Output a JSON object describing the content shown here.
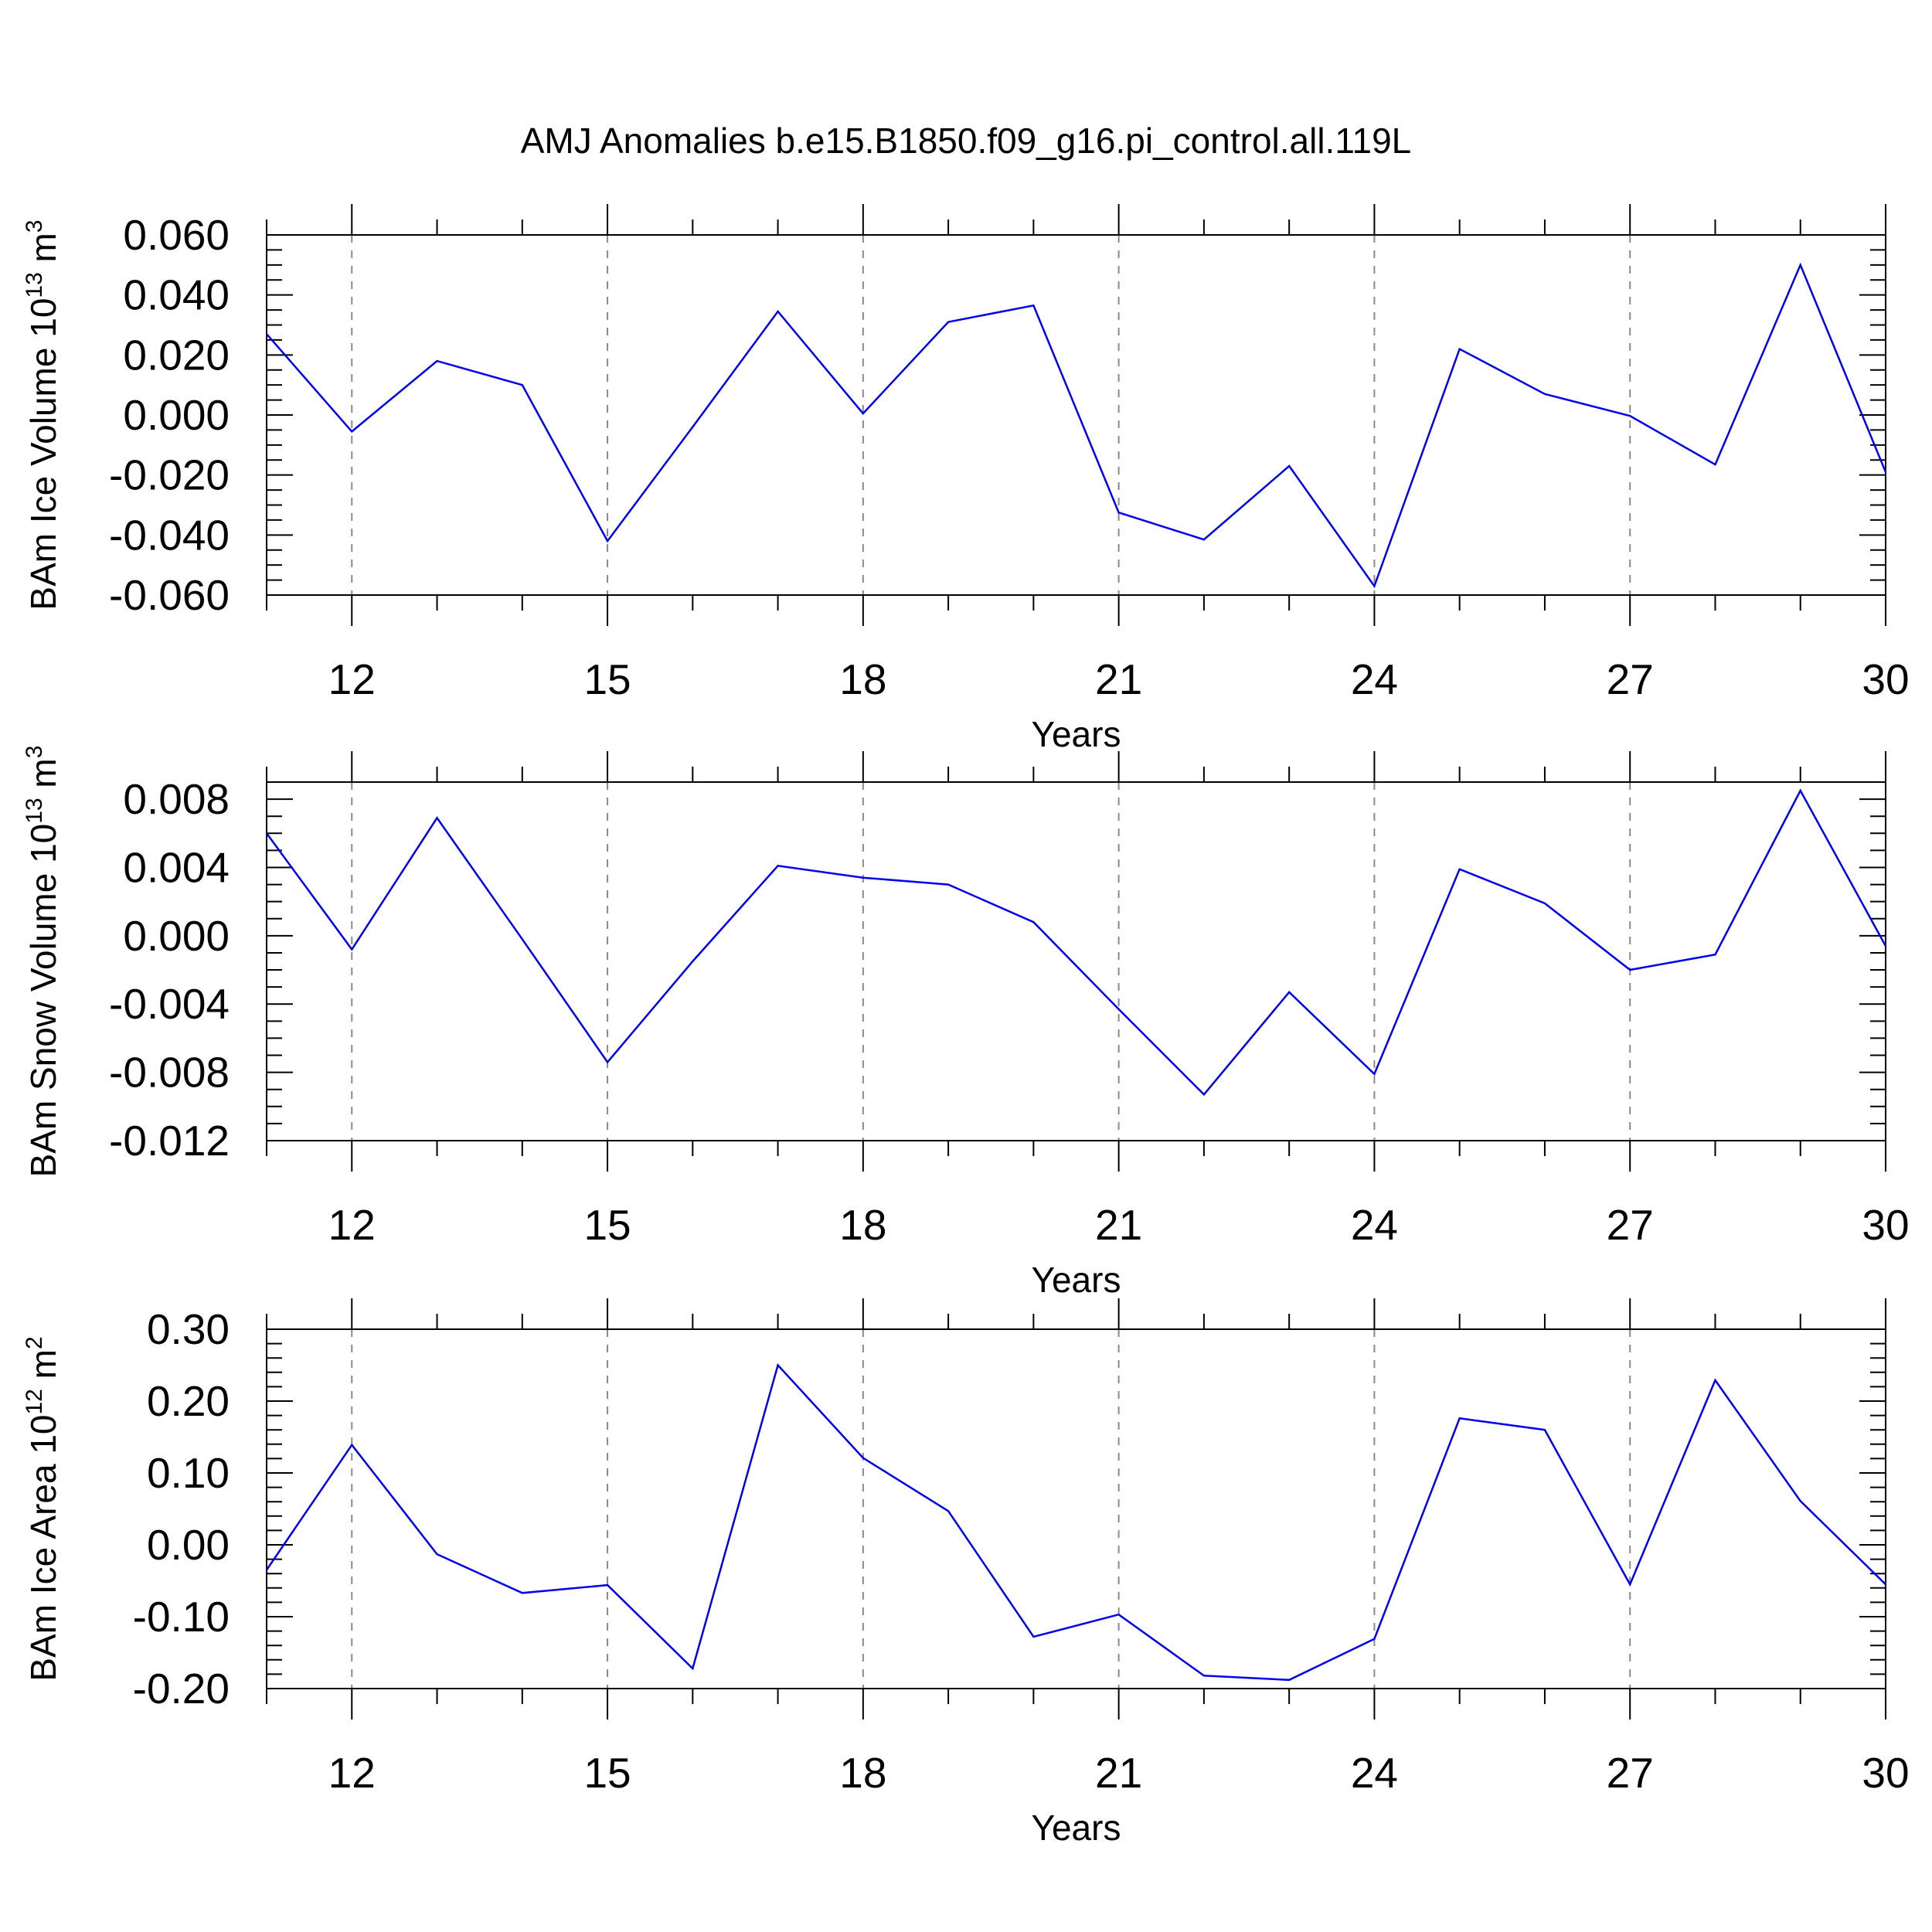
{
  "title": "AMJ Anomalies b.e15.B1850.f09_g16.pi_control.all.119L",
  "colors": {
    "series": "#0000ee",
    "grid": "#8a8a8a",
    "axis": "#000000"
  },
  "chart_data": [
    {
      "type": "line",
      "ylabel": {
        "text": "BAm Ice Volume 10",
        "exp": "13",
        "unit": " m",
        "unit_exp": "3"
      },
      "xlabel": "Years",
      "xlim": [
        11,
        30
      ],
      "ylim": [
        -0.06,
        0.06
      ],
      "x_ticks": [
        12,
        15,
        18,
        21,
        24,
        27,
        30
      ],
      "y_ticks": [
        -0.06,
        -0.04,
        -0.02,
        0.0,
        0.02,
        0.04,
        0.06
      ],
      "y_tick_labels": [
        "-0.060",
        "-0.040",
        "-0.020",
        "0.000",
        "0.020",
        "0.040",
        "0.060"
      ],
      "y_minor_step": 0.005,
      "grid": "x-dashed",
      "x": [
        11,
        12,
        13,
        14,
        15,
        16,
        17,
        18,
        19,
        20,
        21,
        22,
        23,
        24,
        25,
        26,
        27,
        28,
        29,
        30
      ],
      "values": [
        0.027,
        -0.0055,
        0.018,
        0.01,
        -0.042,
        -0.004,
        0.0345,
        0.0005,
        0.031,
        0.0365,
        -0.0325,
        -0.0415,
        -0.017,
        -0.057,
        0.022,
        0.007,
        -0.0003,
        -0.0165,
        0.05,
        -0.019
      ]
    },
    {
      "type": "line",
      "ylabel": {
        "text": "BAm Snow Volume 10",
        "exp": "13",
        "unit": " m",
        "unit_exp": "3"
      },
      "xlabel": "Years",
      "xlim": [
        11,
        30
      ],
      "ylim": [
        -0.012,
        0.009
      ],
      "x_ticks": [
        12,
        15,
        18,
        21,
        24,
        27,
        30
      ],
      "y_ticks": [
        -0.012,
        -0.008,
        -0.004,
        0.0,
        0.004,
        0.008
      ],
      "y_tick_labels": [
        "-0.012",
        "-0.008",
        "-0.004",
        "0.000",
        "0.004",
        "0.008"
      ],
      "y_minor_step": 0.001,
      "grid": "x-dashed",
      "x": [
        11,
        12,
        13,
        14,
        15,
        16,
        17,
        18,
        19,
        20,
        21,
        22,
        23,
        24,
        25,
        26,
        27,
        28,
        29,
        30
      ],
      "values": [
        0.006,
        -0.0008,
        0.0069,
        -0.0002,
        -0.0074,
        -0.0015,
        0.0041,
        0.0034,
        0.003,
        0.0008,
        -0.0043,
        -0.0093,
        -0.0033,
        -0.0081,
        0.0039,
        0.0019,
        -0.002,
        -0.0011,
        0.0085,
        -0.0006
      ]
    },
    {
      "type": "line",
      "ylabel": {
        "text": "BAm Ice Area 10",
        "exp": "12",
        "unit": " m",
        "unit_exp": "2"
      },
      "xlabel": "Years",
      "xlim": [
        11,
        30
      ],
      "ylim": [
        -0.2,
        0.3
      ],
      "x_ticks": [
        12,
        15,
        18,
        21,
        24,
        27,
        30
      ],
      "y_ticks": [
        -0.2,
        -0.1,
        0.0,
        0.1,
        0.2,
        0.3
      ],
      "y_tick_labels": [
        "-0.20",
        "-0.10",
        "0.00",
        "0.10",
        "0.20",
        "0.30"
      ],
      "y_minor_step": 0.02,
      "grid": "x-dashed",
      "x": [
        11,
        12,
        13,
        14,
        15,
        16,
        17,
        18,
        19,
        20,
        21,
        22,
        23,
        24,
        25,
        26,
        27,
        28,
        29,
        30
      ],
      "values": [
        -0.035,
        0.139,
        -0.013,
        -0.067,
        -0.056,
        -0.172,
        0.25,
        0.121,
        0.047,
        -0.128,
        -0.097,
        -0.182,
        -0.188,
        -0.131,
        0.176,
        0.16,
        -0.055,
        0.229,
        0.061,
        -0.055
      ]
    }
  ]
}
